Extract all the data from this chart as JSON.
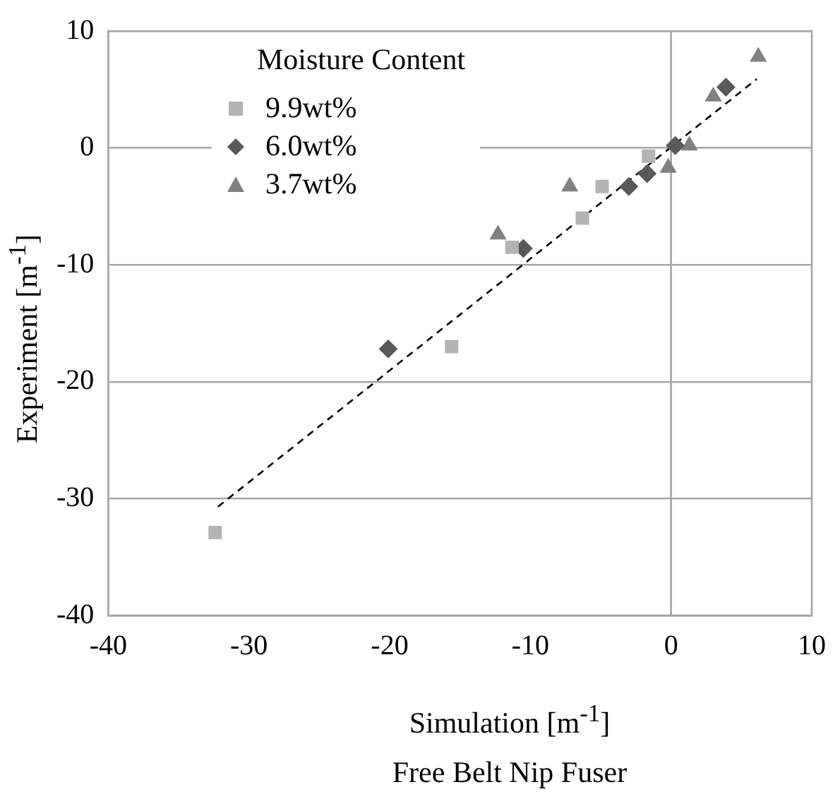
{
  "chart_data": {
    "type": "scatter",
    "title": "Free Belt Nip Fuser",
    "xlabel": "Simulation [m$^{-1}$]",
    "ylabel": "Experiment  [m$^{-1}$]",
    "legend_title": "Moisture Content",
    "legend": "top left",
    "xlim": [
      -40,
      10
    ],
    "xticks": [
      -40,
      -30,
      -20,
      -10,
      0,
      10
    ],
    "ylim": [
      -40,
      10
    ],
    "yticks": [
      -40,
      -30,
      -20,
      -10,
      0,
      10
    ],
    "grid": "y",
    "ref_lines": [
      {
        "axis": "x",
        "value": 0,
        "color": "#a6a6a6"
      }
    ],
    "series": [
      {
        "name": "9.9wt%",
        "color": "#b3b3b3",
        "marker": "square",
        "x": [
          -1.6,
          -4.9,
          -6.3,
          -11.3,
          -15.6,
          -32.4
        ],
        "values": [
          -0.7,
          -3.3,
          -6.0,
          -8.5,
          -17.0,
          -32.9
        ]
      },
      {
        "name": "6.0wt%",
        "color": "#595959",
        "marker": "diamond",
        "x": [
          0.3,
          -1.7,
          -3.0,
          -10.5,
          -20.1,
          3.9
        ],
        "values": [
          0.2,
          -2.2,
          -3.3,
          -8.6,
          -17.2,
          5.2
        ]
      },
      {
        "name": "3.7wt%",
        "color": "#808080",
        "marker": "triangle",
        "x": [
          1.3,
          -0.2,
          -7.2,
          -12.3,
          3.0,
          6.2
        ],
        "values": [
          0.2,
          -1.7,
          -3.3,
          -7.4,
          4.4,
          7.8
        ]
      },
      {
        "type": "line",
        "color": "#000000",
        "marker": "none",
        "line_style": "dashed",
        "x": [
          -32.2,
          6.1
        ],
        "values": [
          -30.7,
          5.9
        ]
      }
    ]
  }
}
